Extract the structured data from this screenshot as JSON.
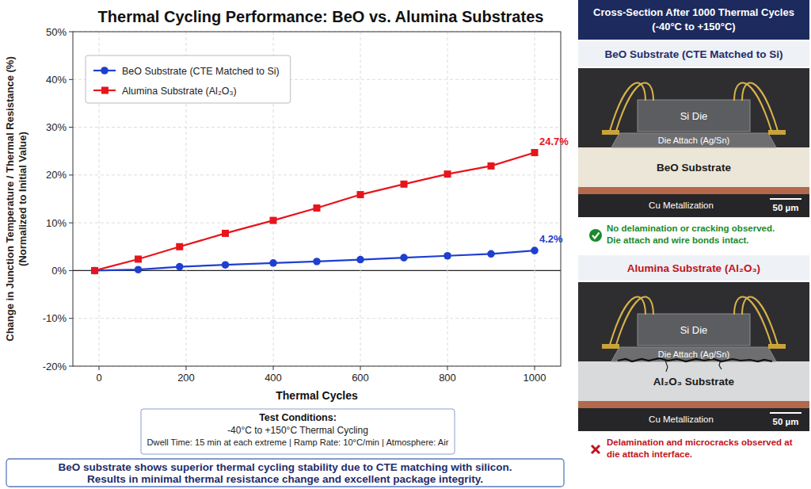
{
  "chart_data": {
    "type": "line",
    "title": "Thermal Cycling Performance: BeO vs. Alumina Substrates",
    "x_label": "Thermal Cycles",
    "y_label": [
      "Change in Junction Temperature / Thermal Resistance (%)",
      "(Normalized to Initial Value)"
    ],
    "x": [
      -10,
      90,
      185,
      290,
      400,
      500,
      600,
      700,
      800,
      900,
      1000
    ],
    "series": [
      {
        "name": "BeO Substrate (CTE Matched to Si)",
        "color": "#1f3fd0",
        "marker": "circle",
        "values": [
          0,
          0.2,
          0.8,
          1.2,
          1.6,
          1.9,
          2.3,
          2.7,
          3.1,
          3.5,
          4.2
        ],
        "value_labels": [
          null,
          null,
          null,
          null,
          null,
          null,
          null,
          null,
          null,
          null,
          "4.2%"
        ]
      },
      {
        "name": "Alumina Substrate (Al₂O₃)",
        "color": "#e8141c",
        "marker": "square",
        "values": [
          0,
          2.4,
          5,
          7.8,
          10.5,
          13.1,
          15.9,
          18.1,
          20.2,
          21.9,
          24.7
        ],
        "value_labels": [
          null,
          null,
          null,
          null,
          null,
          null,
          null,
          null,
          null,
          null,
          "24.7%"
        ]
      }
    ],
    "xlim": [
      -60,
      1060
    ],
    "ylim": [
      -20,
      50
    ],
    "xticks": [
      0,
      200,
      400,
      600,
      800,
      1000
    ],
    "yticks": [
      {
        "value": -20,
        "label": "-20%"
      },
      {
        "value": -10,
        "label": "-10%"
      },
      {
        "value": 0,
        "label": "0%"
      },
      {
        "value": 10,
        "label": "10%"
      },
      {
        "value": 20,
        "label": "20%"
      },
      {
        "value": 30,
        "label": "30%"
      },
      {
        "value": 40,
        "label": "40%"
      },
      {
        "value": 50,
        "label": "50%"
      }
    ],
    "grid": true,
    "legend": "upper left",
    "data_labels": true
  },
  "test_conditions": {
    "title": "Test Conditions:",
    "lines": [
      "-40°C to +150°C Thermal Cycling",
      "Dwell Time: 15 min at each extreme | Ramp Rate: 10°C/min | Atmosphere: Air"
    ]
  },
  "summary": {
    "lines": [
      "BeO substrate shows superior thermal cycling stability due to CTE matching with silicon.",
      "Results in minimal thermal resistance change and excellent package integrity."
    ]
  },
  "cross_section": {
    "title": [
      "Cross-Section After 1000 Thermal Cycles",
      "(-40°C to +150°C)"
    ],
    "panels": [
      {
        "title": "BeO Substrate (CTE Matched to Si)",
        "color": "#1f2d6b",
        "die": "Si Die",
        "die_attach": "Die Attach (Ag/Sn)",
        "substrate": "BeO Substrate",
        "metallization": "Cu Metallization",
        "scale": "50 µm",
        "caption": [
          "No delamination or cracking observed.",
          "Die attach and wire bonds intact."
        ],
        "caption_color": "#1a8a2a"
      },
      {
        "title": "Alumina Substrate (Al₂O₃)",
        "color": "#c0141c",
        "die": "Si Die",
        "die_attach": "Die Attach (Ag/Sn)",
        "substrate": "Al₂O₃ Substrate",
        "metallization": "Cu Metallization",
        "scale": "50 µm",
        "caption": [
          "Delamination and microcracks observed at",
          "die attach interface."
        ],
        "caption_color": "#c0141c"
      }
    ]
  }
}
